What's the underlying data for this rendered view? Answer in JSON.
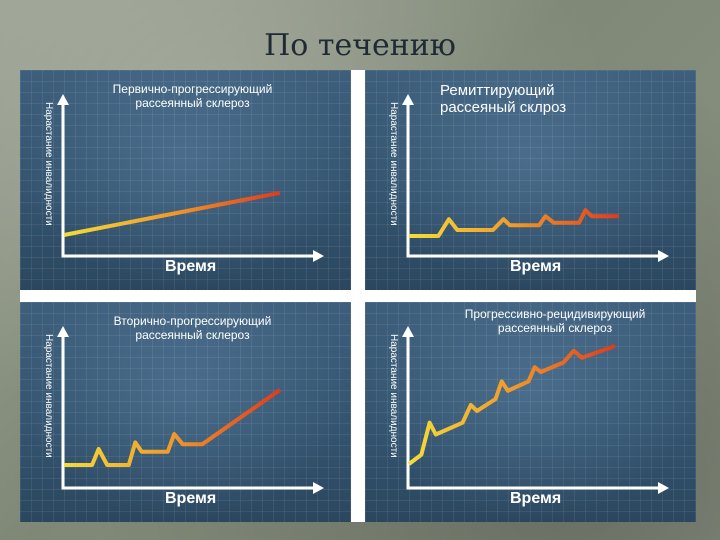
{
  "slide": {
    "title": "По течению"
  },
  "panels": [
    {
      "title_lines": [
        "Первично-прогрессирующий",
        "рассеянный склероз"
      ],
      "ylabel": "Нарастание инвалидности",
      "xlabel": "Время",
      "curve": [
        [
          0,
          0
        ],
        [
          100,
          62
        ]
      ]
    },
    {
      "title_lines": [
        "Ремиттирующий",
        "рассеяный склроз"
      ],
      "ylabel": "Нарастание инвалидности",
      "xlabel": "Время",
      "curve": [
        [
          0,
          0
        ],
        [
          14,
          0
        ],
        [
          19,
          28
        ],
        [
          23,
          10
        ],
        [
          40,
          10
        ],
        [
          45,
          28
        ],
        [
          48,
          18
        ],
        [
          62,
          18
        ],
        [
          65,
          33
        ],
        [
          69,
          22
        ],
        [
          81,
          22
        ],
        [
          84,
          43
        ],
        [
          87,
          33
        ],
        [
          100,
          33
        ]
      ]
    },
    {
      "title_lines": [
        "Вторично-прогрессирующий",
        "рассеянный склероз"
      ],
      "ylabel": "Нарастание инвалидности",
      "xlabel": "Время",
      "curve": [
        [
          0,
          0
        ],
        [
          13,
          0
        ],
        [
          16,
          17
        ],
        [
          20,
          0
        ],
        [
          30,
          0
        ],
        [
          33,
          24
        ],
        [
          36,
          14
        ],
        [
          48,
          14
        ],
        [
          51,
          33
        ],
        [
          55,
          22
        ],
        [
          64,
          22
        ],
        [
          100,
          80
        ]
      ]
    },
    {
      "title_lines": [
        "Прогрессивно-рецидивирующий",
        "рассеянный склероз"
      ],
      "ylabel": "Нарастание инвалидности",
      "xlabel": "Время",
      "curve": [
        [
          0,
          0
        ],
        [
          6,
          8
        ],
        [
          10,
          35
        ],
        [
          13,
          25
        ],
        [
          26,
          35
        ],
        [
          30,
          50
        ],
        [
          33,
          45
        ],
        [
          42,
          55
        ],
        [
          45,
          70
        ],
        [
          48,
          62
        ],
        [
          58,
          70
        ],
        [
          61,
          82
        ],
        [
          64,
          78
        ],
        [
          75,
          86
        ],
        [
          80,
          96
        ],
        [
          84,
          90
        ],
        [
          100,
          100
        ]
      ]
    }
  ]
}
